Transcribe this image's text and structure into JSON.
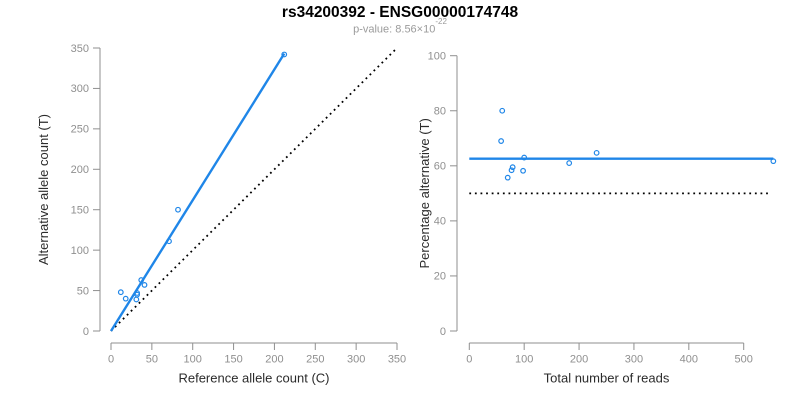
{
  "header": {
    "title": "rs34200392 - ENSG00000174748",
    "p_value_text": "p-value: 8.56×10",
    "p_value_exponent": "-22"
  },
  "colors": {
    "accent_blue": "#1f86e8",
    "axis_gray": "#8f8f8f",
    "axis_title_dark": "#2b2b2b",
    "subtitle_gray": "#9b9b9b",
    "dotted_black": "#000000",
    "background": "#ffffff"
  },
  "chart_data": [
    {
      "name": "allele-count-scatter",
      "type": "scatter",
      "xlabel": "Reference allele count (C)",
      "ylabel": "Alternative allele count (T)",
      "xlim": [
        0,
        350
      ],
      "ylim": [
        0,
        350
      ],
      "xticks": [
        0,
        50,
        100,
        150,
        200,
        250,
        300,
        350
      ],
      "yticks": [
        0,
        50,
        100,
        150,
        200,
        250,
        300,
        350
      ],
      "grid": false,
      "x": [
        12,
        18,
        31,
        32,
        32,
        37,
        41,
        71,
        82,
        212
      ],
      "y": [
        48,
        40,
        39,
        47,
        45,
        63,
        57,
        111,
        150,
        342
      ],
      "lines": [
        {
          "name": "identity-line",
          "style": "dotted",
          "color": "#000000",
          "x1": 0,
          "y1": 0,
          "x2": 350,
          "y2": 350
        },
        {
          "name": "fit-line",
          "style": "solid",
          "color": "#1f86e8",
          "x1": 0,
          "y1": 0,
          "x2": 212,
          "y2": 343
        }
      ]
    },
    {
      "name": "percentage-alternative-scatter",
      "type": "scatter",
      "xlabel": "Total number of reads",
      "ylabel": "Percentage alternative (T)",
      "xlim": [
        0,
        560
      ],
      "ylim": [
        0,
        100
      ],
      "xticks": [
        0,
        100,
        200,
        300,
        400,
        500
      ],
      "yticks": [
        0,
        20,
        40,
        60,
        80,
        100
      ],
      "grid": false,
      "x": [
        60,
        58,
        70,
        79,
        77,
        100,
        98,
        182,
        232,
        554
      ],
      "y": [
        80,
        69,
        55.7,
        59.5,
        58.4,
        63,
        58.2,
        61,
        64.7,
        61.7
      ],
      "lines": [
        {
          "name": "null-line",
          "style": "dotted",
          "color": "#000000",
          "x1": 0,
          "y1": 50,
          "x2": 548,
          "y2": 50
        },
        {
          "name": "mean-line",
          "style": "solid",
          "color": "#1f86e8",
          "x1": 0,
          "y1": 62.6,
          "x2": 554,
          "y2": 62.6
        }
      ]
    }
  ]
}
